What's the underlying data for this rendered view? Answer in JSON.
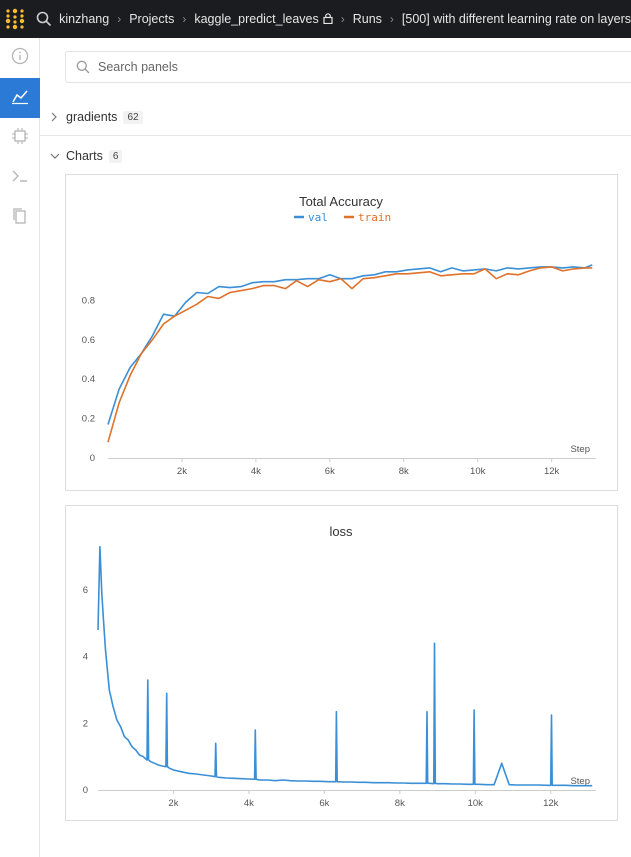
{
  "topbar": {
    "breadcrumbs": [
      "kinzhang",
      "Projects",
      "kaggle_predict_leaves",
      "Runs",
      "[500] with different learning rate on layers"
    ],
    "bg_color": "#1a1c1f",
    "logo_color": "#fcbc32"
  },
  "sidebar": {
    "items": [
      {
        "icon": "info-icon",
        "active": false
      },
      {
        "icon": "chart-icon",
        "active": true
      },
      {
        "icon": "cpu-icon",
        "active": false
      },
      {
        "icon": "terminal-icon",
        "active": false
      },
      {
        "icon": "files-icon",
        "active": false
      }
    ],
    "accent": "#2b7bd6"
  },
  "search": {
    "placeholder": "Search panels",
    "value": ""
  },
  "sections": [
    {
      "label": "gradients",
      "count": "62",
      "expanded": false
    },
    {
      "label": "Charts",
      "count": "6",
      "expanded": true
    }
  ],
  "chart_data": [
    {
      "type": "line",
      "title": "Total Accuracy",
      "xlabel": "Step",
      "xlim": [
        0,
        13200
      ],
      "ylim": [
        0,
        1.0
      ],
      "xticks": [
        {
          "v": 2000,
          "label": "2k"
        },
        {
          "v": 4000,
          "label": "4k"
        },
        {
          "v": 6000,
          "label": "6k"
        },
        {
          "v": 8000,
          "label": "8k"
        },
        {
          "v": 10000,
          "label": "10k"
        },
        {
          "v": 12000,
          "label": "12k"
        }
      ],
      "yticks": [
        {
          "v": 0,
          "label": "0"
        },
        {
          "v": 0.2,
          "label": "0.2"
        },
        {
          "v": 0.4,
          "label": "0.4"
        },
        {
          "v": 0.6,
          "label": "0.6"
        },
        {
          "v": 0.8,
          "label": "0.8"
        }
      ],
      "legend": "top-center",
      "series": [
        {
          "name": "val",
          "color": "#3a8fd6",
          "x": [
            0,
            300,
            600,
            900,
            1200,
            1500,
            1800,
            2100,
            2400,
            2700,
            3000,
            3300,
            3600,
            3900,
            4200,
            4500,
            4800,
            5100,
            5400,
            5700,
            6000,
            6300,
            6600,
            6900,
            7200,
            7500,
            7800,
            8100,
            8400,
            8700,
            9000,
            9300,
            9600,
            9900,
            10200,
            10500,
            10800,
            11100,
            11400,
            11700,
            12000,
            12300,
            12600,
            12900,
            13100
          ],
          "y": [
            0.17,
            0.35,
            0.46,
            0.53,
            0.62,
            0.73,
            0.72,
            0.79,
            0.84,
            0.835,
            0.87,
            0.865,
            0.87,
            0.89,
            0.895,
            0.895,
            0.905,
            0.905,
            0.91,
            0.91,
            0.93,
            0.91,
            0.91,
            0.925,
            0.93,
            0.945,
            0.945,
            0.955,
            0.96,
            0.965,
            0.945,
            0.965,
            0.95,
            0.955,
            0.96,
            0.95,
            0.965,
            0.96,
            0.965,
            0.97,
            0.97,
            0.965,
            0.97,
            0.965,
            0.98
          ]
        },
        {
          "name": "train",
          "color": "#e0712a",
          "x": [
            0,
            300,
            600,
            900,
            1200,
            1500,
            1800,
            2100,
            2400,
            2700,
            3000,
            3300,
            3600,
            3900,
            4200,
            4500,
            4800,
            5100,
            5400,
            5700,
            6000,
            6300,
            6600,
            6900,
            7200,
            7500,
            7800,
            8100,
            8400,
            8700,
            9000,
            9300,
            9600,
            9900,
            10200,
            10500,
            10800,
            11100,
            11400,
            11700,
            12000,
            12300,
            12600,
            12900,
            13100
          ],
          "y": [
            0.08,
            0.28,
            0.42,
            0.53,
            0.6,
            0.68,
            0.72,
            0.75,
            0.78,
            0.82,
            0.81,
            0.84,
            0.85,
            0.86,
            0.875,
            0.875,
            0.86,
            0.9,
            0.87,
            0.905,
            0.895,
            0.91,
            0.86,
            0.91,
            0.915,
            0.925,
            0.935,
            0.935,
            0.94,
            0.945,
            0.925,
            0.93,
            0.935,
            0.935,
            0.96,
            0.91,
            0.935,
            0.93,
            0.95,
            0.965,
            0.97,
            0.95,
            0.96,
            0.965,
            0.965
          ]
        }
      ]
    },
    {
      "type": "line",
      "title": "loss",
      "xlabel": "Step",
      "xlim": [
        0,
        13200
      ],
      "ylim": [
        0,
        7.5
      ],
      "xticks": [
        {
          "v": 2000,
          "label": "2k"
        },
        {
          "v": 4000,
          "label": "4k"
        },
        {
          "v": 6000,
          "label": "6k"
        },
        {
          "v": 8000,
          "label": "8k"
        },
        {
          "v": 10000,
          "label": "10k"
        },
        {
          "v": 12000,
          "label": "12k"
        }
      ],
      "yticks": [
        {
          "v": 0,
          "label": "0"
        },
        {
          "v": 2,
          "label": "2"
        },
        {
          "v": 4,
          "label": "4"
        },
        {
          "v": 6,
          "label": "6"
        }
      ],
      "series": [
        {
          "name": "loss",
          "color": "#3a8fd6",
          "x": [
            0,
            50,
            100,
            150,
            200,
            300,
            400,
            500,
            600,
            700,
            800,
            900,
            1000,
            1100,
            1200,
            1300,
            1320,
            1340,
            1400,
            1500,
            1600,
            1700,
            1800,
            1820,
            1840,
            1900,
            2000,
            2200,
            2400,
            2600,
            2800,
            3000,
            3100,
            3120,
            3140,
            3200,
            3400,
            3600,
            3800,
            4000,
            4150,
            4170,
            4190,
            4300,
            4500,
            4700,
            4900,
            5100,
            5300,
            5500,
            5700,
            5900,
            6100,
            6300,
            6320,
            6340,
            6500,
            6700,
            6900,
            7100,
            7300,
            7500,
            7700,
            7900,
            8100,
            8300,
            8500,
            8700,
            8720,
            8740,
            8800,
            8900,
            8920,
            8940,
            9000,
            9200,
            9400,
            9600,
            9800,
            9950,
            9970,
            9990,
            10100,
            10300,
            10500,
            10700,
            10900,
            11100,
            11300,
            11500,
            11700,
            11900,
            12000,
            12020,
            12040,
            12200,
            12400,
            12600,
            12800,
            13000,
            13100
          ],
          "y": [
            4.8,
            7.3,
            5.9,
            5.0,
            4.2,
            3.0,
            2.5,
            2.1,
            1.9,
            1.6,
            1.5,
            1.3,
            1.2,
            1.05,
            1.0,
            0.9,
            3.3,
            0.9,
            0.85,
            0.8,
            0.75,
            0.72,
            0.7,
            2.9,
            0.7,
            0.65,
            0.6,
            0.55,
            0.5,
            0.48,
            0.45,
            0.42,
            0.4,
            1.4,
            0.4,
            0.38,
            0.36,
            0.35,
            0.34,
            0.33,
            0.32,
            1.8,
            0.32,
            0.3,
            0.3,
            0.28,
            0.3,
            0.28,
            0.27,
            0.27,
            0.26,
            0.26,
            0.25,
            0.25,
            2.35,
            0.25,
            0.24,
            0.24,
            0.23,
            0.23,
            0.22,
            0.22,
            0.22,
            0.21,
            0.21,
            0.2,
            0.2,
            0.2,
            2.35,
            0.2,
            0.2,
            0.19,
            4.4,
            0.2,
            0.19,
            0.19,
            0.18,
            0.18,
            0.17,
            0.17,
            2.4,
            0.17,
            0.17,
            0.16,
            0.16,
            0.8,
            0.16,
            0.15,
            0.15,
            0.15,
            0.15,
            0.14,
            0.14,
            2.25,
            0.14,
            0.14,
            0.14,
            0.13,
            0.13,
            0.13,
            0.13
          ]
        }
      ]
    }
  ]
}
